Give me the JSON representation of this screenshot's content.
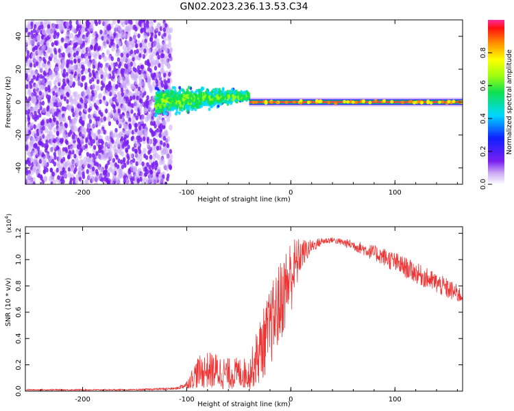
{
  "title": "GN02.2023.236.13.53.C34",
  "colors": {
    "snr_line": "#ee3333",
    "stable_band": "#ff3355",
    "scatter": "#7a1ff0"
  },
  "colorbar": {
    "label": "Normalized spectral amplitude",
    "ticks": [
      {
        "v": 0.0,
        "label": "0.0"
      },
      {
        "v": 0.2,
        "label": "0.2"
      },
      {
        "v": 0.4,
        "label": "0.4"
      },
      {
        "v": 0.6,
        "label": "0.6"
      },
      {
        "v": 0.8,
        "label": "0.8"
      }
    ]
  },
  "chart_data": [
    {
      "type": "heatmap",
      "ylabel": "Frequency (Hz)",
      "xlabel": "Height of straight line (km)",
      "xlim": [
        -255,
        165
      ],
      "ylim": [
        -50,
        50
      ],
      "xticks": [
        {
          "v": -200,
          "label": "-200"
        },
        {
          "v": -100,
          "label": "-100"
        },
        {
          "v": 0,
          "label": "0"
        },
        {
          "v": 100,
          "label": "100"
        }
      ],
      "yticks": [
        {
          "v": -40,
          "label": "-40"
        },
        {
          "v": -20,
          "label": "-20"
        },
        {
          "v": 0,
          "label": "0"
        },
        {
          "v": 20,
          "label": "20"
        },
        {
          "v": 40,
          "label": "40"
        }
      ],
      "regions": [
        {
          "x": [
            -255,
            -120
          ],
          "freq_spread": 50,
          "amplitude": 0.12
        },
        {
          "x": [
            -130,
            -40
          ],
          "freq_center": [
            0,
            4
          ],
          "freq_spread": [
            10,
            3
          ],
          "amplitude": 0.35
        },
        {
          "x": [
            -40,
            165
          ],
          "freq_center": 0,
          "freq_spread": 2,
          "amplitude": 0.85
        }
      ]
    },
    {
      "type": "line",
      "ylabel": "SNR (10 * v/v)",
      "y_multiplier": "(x10",
      "y_exponent": "4",
      "xlabel": "Height of straight line (km)",
      "xlim": [
        -255,
        165
      ],
      "ylim": [
        0,
        1.25
      ],
      "xticks": [
        {
          "v": -200,
          "label": "-200"
        },
        {
          "v": -100,
          "label": "-100"
        },
        {
          "v": 0,
          "label": "0"
        },
        {
          "v": 100,
          "label": "100"
        }
      ],
      "yticks": [
        {
          "v": 0.0,
          "label": "0.0"
        },
        {
          "v": 0.2,
          "label": "0.2"
        },
        {
          "v": 0.4,
          "label": "0.4"
        },
        {
          "v": 0.6,
          "label": "0.6"
        },
        {
          "v": 0.8,
          "label": "0.8"
        },
        {
          "v": 1.0,
          "label": "1.0"
        },
        {
          "v": 1.2,
          "label": "1.2"
        }
      ],
      "series": [
        {
          "x": [
            -255,
            -200,
            -150,
            -110,
            -100,
            -90,
            -80,
            -70,
            -60,
            -50,
            -40,
            -30,
            -20,
            -10,
            0,
            10,
            20,
            30,
            40,
            50,
            60,
            70,
            80,
            90,
            100,
            110,
            120,
            130,
            140,
            150,
            160,
            165
          ],
          "values": [
            0.01,
            0.01,
            0.01,
            0.02,
            0.05,
            0.14,
            0.16,
            0.15,
            0.13,
            0.14,
            0.13,
            0.3,
            0.48,
            0.68,
            0.88,
            1.04,
            1.1,
            1.14,
            1.15,
            1.13,
            1.11,
            1.08,
            1.05,
            1.02,
            0.98,
            0.94,
            0.9,
            0.86,
            0.82,
            0.78,
            0.74,
            0.72
          ],
          "noise": [
            0.005,
            0.005,
            0.005,
            0.01,
            0.03,
            0.12,
            0.14,
            0.14,
            0.12,
            0.12,
            0.12,
            0.25,
            0.3,
            0.32,
            0.3,
            0.12,
            0.05,
            0.03,
            0.02,
            0.03,
            0.04,
            0.05,
            0.06,
            0.07,
            0.08,
            0.08,
            0.08,
            0.08,
            0.08,
            0.08,
            0.07,
            0.06
          ]
        }
      ]
    }
  ]
}
